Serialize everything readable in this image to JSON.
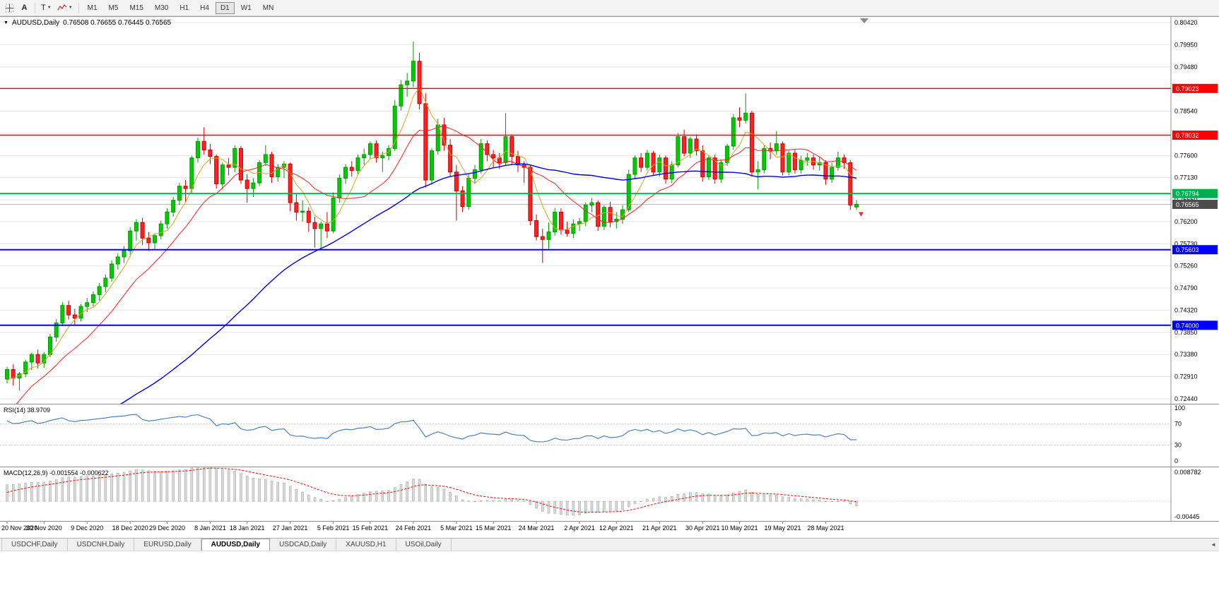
{
  "toolbar": {
    "tool_a_label": "A",
    "tool_t_label": "T",
    "timeframes": [
      "M1",
      "M5",
      "M15",
      "M30",
      "H1",
      "H4",
      "D1",
      "W1",
      "MN"
    ],
    "active_timeframe": "D1"
  },
  "chart_data": {
    "type": "candlestick",
    "symbol_title": "AUDUSD,Daily",
    "ohlc_text": "0.76508 0.76655 0.76445 0.76565",
    "price_axis": {
      "top": 0.8042,
      "bottom": 0.7244,
      "labels": [
        "0.80420",
        "0.79950",
        "0.79480",
        "0.79010",
        "0.78540",
        "0.78070",
        "0.77600",
        "0.77130",
        "0.76660",
        "0.76200",
        "0.75730",
        "0.75260",
        "0.74790",
        "0.74320",
        "0.73850",
        "0.73380",
        "0.72910",
        "0.72440"
      ]
    },
    "style": {
      "bull_fill": "#00CC00",
      "bull_border": "#009900",
      "bear_fill": "#FF2222",
      "bear_border": "#CC0000"
    },
    "moving_averages": [
      {
        "period": 5,
        "color": "#DFA520",
        "width": 1
      },
      {
        "period": 13,
        "color": "#FF2020",
        "width": 1
      },
      {
        "period": 55,
        "color": "#0000D8",
        "width": 1.4
      }
    ],
    "hlines": [
      {
        "price": 0.79023,
        "label": "0.79023",
        "color": "#FF0000",
        "width": 1.4
      },
      {
        "price": 0.78032,
        "label": "0.78032",
        "color": "#FF0000",
        "width": 1.4
      },
      {
        "price": 0.76794,
        "label": "0.76794",
        "color": "#00B050",
        "width": 2
      },
      {
        "price": 0.75603,
        "label": "0.75603",
        "color": "#0000FF",
        "width": 2
      },
      {
        "price": 0.74,
        "label": "0.74000",
        "color": "#0000FF",
        "width": 2
      }
    ],
    "current_price": {
      "value": 0.76565,
      "label": "0.76565",
      "line_color": "#BDBDBD",
      "badge_color": "#4D4D4D"
    },
    "date_labels": [
      {
        "i": 0,
        "label": "20 Nov 2020"
      },
      {
        "i": 6,
        "label": "30 Nov 2020"
      },
      {
        "i": 13,
        "label": "9 Dec 2020"
      },
      {
        "i": 20,
        "label": "18 Dec 2020"
      },
      {
        "i": 26,
        "label": "29 Dec 2020"
      },
      {
        "i": 33,
        "label": "8 Jan 2021"
      },
      {
        "i": 39,
        "label": "18 Jan 2021"
      },
      {
        "i": 46,
        "label": "27 Jan 2021"
      },
      {
        "i": 53,
        "label": "5 Feb 2021"
      },
      {
        "i": 59,
        "label": "15 Feb 2021"
      },
      {
        "i": 66,
        "label": "24 Feb 2021"
      },
      {
        "i": 73,
        "label": "5 Mar 2021"
      },
      {
        "i": 79,
        "label": "15 Mar 2021"
      },
      {
        "i": 86,
        "label": "24 Mar 2021"
      },
      {
        "i": 93,
        "label": "2 Apr 2021"
      },
      {
        "i": 99,
        "label": "12 Apr 2021"
      },
      {
        "i": 106,
        "label": "21 Apr 2021"
      },
      {
        "i": 113,
        "label": "30 Apr 2021"
      },
      {
        "i": 119,
        "label": "10 May 2021"
      },
      {
        "i": 126,
        "label": "19 May 2021"
      },
      {
        "i": 133,
        "label": "28 May 2021"
      }
    ],
    "candles": [
      [
        0.7286,
        0.7312,
        0.7277,
        0.7306
      ],
      [
        0.7306,
        0.7317,
        0.7272,
        0.7288
      ],
      [
        0.7288,
        0.7301,
        0.7262,
        0.7297
      ],
      [
        0.7297,
        0.7327,
        0.729,
        0.7322
      ],
      [
        0.7322,
        0.7342,
        0.7305,
        0.7338
      ],
      [
        0.7338,
        0.7348,
        0.7308,
        0.732
      ],
      [
        0.732,
        0.7343,
        0.731,
        0.7338
      ],
      [
        0.7338,
        0.7382,
        0.7332,
        0.7375
      ],
      [
        0.7375,
        0.7413,
        0.7365,
        0.7405
      ],
      [
        0.7405,
        0.7449,
        0.7398,
        0.7442
      ],
      [
        0.7442,
        0.7452,
        0.7412,
        0.7422
      ],
      [
        0.7422,
        0.7435,
        0.74,
        0.7415
      ],
      [
        0.7415,
        0.7445,
        0.7408,
        0.744
      ],
      [
        0.744,
        0.7458,
        0.7428,
        0.7448
      ],
      [
        0.7448,
        0.7472,
        0.744,
        0.7465
      ],
      [
        0.7465,
        0.749,
        0.7452,
        0.7482
      ],
      [
        0.7482,
        0.7508,
        0.747,
        0.75
      ],
      [
        0.75,
        0.7538,
        0.7492,
        0.753
      ],
      [
        0.753,
        0.7552,
        0.7518,
        0.7545
      ],
      [
        0.7545,
        0.7568,
        0.7532,
        0.7558
      ],
      [
        0.7558,
        0.7608,
        0.755,
        0.76
      ],
      [
        0.76,
        0.7625,
        0.758,
        0.7618
      ],
      [
        0.7618,
        0.7628,
        0.757,
        0.7585
      ],
      [
        0.7585,
        0.7598,
        0.7558,
        0.7575
      ],
      [
        0.7575,
        0.7595,
        0.7562,
        0.759
      ],
      [
        0.759,
        0.7622,
        0.7582,
        0.7615
      ],
      [
        0.7615,
        0.7648,
        0.7605,
        0.764
      ],
      [
        0.764,
        0.7672,
        0.763,
        0.7665
      ],
      [
        0.7665,
        0.7702,
        0.7655,
        0.7695
      ],
      [
        0.7695,
        0.7708,
        0.766,
        0.769
      ],
      [
        0.769,
        0.776,
        0.768,
        0.7755
      ],
      [
        0.7755,
        0.7798,
        0.7745,
        0.779
      ],
      [
        0.779,
        0.782,
        0.7762,
        0.7772
      ],
      [
        0.7772,
        0.7785,
        0.7742,
        0.7758
      ],
      [
        0.7758,
        0.7762,
        0.769,
        0.77
      ],
      [
        0.77,
        0.7745,
        0.7688,
        0.774
      ],
      [
        0.774,
        0.7755,
        0.7718,
        0.7735
      ],
      [
        0.7735,
        0.7782,
        0.7725,
        0.7775
      ],
      [
        0.7775,
        0.778,
        0.77,
        0.7708
      ],
      [
        0.7708,
        0.772,
        0.766,
        0.769
      ],
      [
        0.769,
        0.7712,
        0.7672,
        0.7702
      ],
      [
        0.7702,
        0.775,
        0.7695,
        0.7745
      ],
      [
        0.7745,
        0.7782,
        0.7738,
        0.7762
      ],
      [
        0.7762,
        0.7768,
        0.7702,
        0.7715
      ],
      [
        0.7715,
        0.7742,
        0.7705,
        0.7735
      ],
      [
        0.7735,
        0.7748,
        0.7712,
        0.7742
      ],
      [
        0.7742,
        0.7745,
        0.7642,
        0.766
      ],
      [
        0.766,
        0.7678,
        0.7622,
        0.764
      ],
      [
        0.764,
        0.7665,
        0.762,
        0.7642
      ],
      [
        0.7642,
        0.765,
        0.7598,
        0.7618
      ],
      [
        0.7618,
        0.763,
        0.7565,
        0.7605
      ],
      [
        0.7605,
        0.762,
        0.7562,
        0.7615
      ],
      [
        0.7615,
        0.764,
        0.7585,
        0.76
      ],
      [
        0.76,
        0.7682,
        0.7595,
        0.767
      ],
      [
        0.767,
        0.772,
        0.766,
        0.7712
      ],
      [
        0.7712,
        0.7742,
        0.77,
        0.7735
      ],
      [
        0.7735,
        0.7748,
        0.7715,
        0.7728
      ],
      [
        0.7728,
        0.7762,
        0.772,
        0.7755
      ],
      [
        0.7755,
        0.7775,
        0.774,
        0.7762
      ],
      [
        0.7762,
        0.779,
        0.7752,
        0.7785
      ],
      [
        0.7785,
        0.7792,
        0.7745,
        0.7755
      ],
      [
        0.7755,
        0.7768,
        0.7725,
        0.776
      ],
      [
        0.776,
        0.7782,
        0.775,
        0.7775
      ],
      [
        0.7775,
        0.7878,
        0.777,
        0.7865
      ],
      [
        0.7865,
        0.792,
        0.7855,
        0.791
      ],
      [
        0.791,
        0.7935,
        0.7885,
        0.7918
      ],
      [
        0.7918,
        0.8002,
        0.7905,
        0.796
      ],
      [
        0.796,
        0.7978,
        0.7858,
        0.787
      ],
      [
        0.787,
        0.7892,
        0.7692,
        0.7708
      ],
      [
        0.7708,
        0.7775,
        0.7698,
        0.777
      ],
      [
        0.777,
        0.7838,
        0.7762,
        0.7825
      ],
      [
        0.7825,
        0.784,
        0.777,
        0.7782
      ],
      [
        0.7782,
        0.7795,
        0.7715,
        0.7725
      ],
      [
        0.7725,
        0.774,
        0.7622,
        0.7685
      ],
      [
        0.7685,
        0.7695,
        0.764,
        0.7652
      ],
      [
        0.7652,
        0.772,
        0.7645,
        0.7712
      ],
      [
        0.7712,
        0.774,
        0.77,
        0.773
      ],
      [
        0.773,
        0.7795,
        0.7722,
        0.7785
      ],
      [
        0.7785,
        0.7792,
        0.7748,
        0.7762
      ],
      [
        0.7762,
        0.7772,
        0.7735,
        0.7755
      ],
      [
        0.7755,
        0.7765,
        0.7732,
        0.7745
      ],
      [
        0.7745,
        0.785,
        0.7738,
        0.78
      ],
      [
        0.78,
        0.7805,
        0.7742,
        0.7758
      ],
      [
        0.7758,
        0.777,
        0.7725,
        0.774
      ],
      [
        0.774,
        0.7748,
        0.7702,
        0.7735
      ],
      [
        0.7735,
        0.774,
        0.7612,
        0.7622
      ],
      [
        0.7622,
        0.7635,
        0.758,
        0.7588
      ],
      [
        0.7588,
        0.7605,
        0.7532,
        0.7582
      ],
      [
        0.7582,
        0.7618,
        0.7562,
        0.7598
      ],
      [
        0.7598,
        0.7648,
        0.759,
        0.764
      ],
      [
        0.764,
        0.7648,
        0.7592,
        0.7602
      ],
      [
        0.7602,
        0.762,
        0.7588,
        0.7595
      ],
      [
        0.7595,
        0.7625,
        0.7585,
        0.7615
      ],
      [
        0.7615,
        0.7628,
        0.76,
        0.762
      ],
      [
        0.762,
        0.766,
        0.761,
        0.7655
      ],
      [
        0.7655,
        0.767,
        0.764,
        0.766
      ],
      [
        0.766,
        0.7665,
        0.76,
        0.761
      ],
      [
        0.761,
        0.7655,
        0.7602,
        0.765
      ],
      [
        0.765,
        0.7662,
        0.7608,
        0.762
      ],
      [
        0.762,
        0.764,
        0.7605,
        0.7625
      ],
      [
        0.7625,
        0.7655,
        0.7615,
        0.7645
      ],
      [
        0.7645,
        0.773,
        0.764,
        0.772
      ],
      [
        0.772,
        0.776,
        0.7712,
        0.7755
      ],
      [
        0.7755,
        0.7765,
        0.7725,
        0.7735
      ],
      [
        0.7735,
        0.7772,
        0.7728,
        0.7765
      ],
      [
        0.7765,
        0.777,
        0.7718,
        0.7725
      ],
      [
        0.7725,
        0.7762,
        0.7715,
        0.7755
      ],
      [
        0.7755,
        0.776,
        0.77,
        0.771
      ],
      [
        0.771,
        0.7748,
        0.7702,
        0.774
      ],
      [
        0.774,
        0.7808,
        0.7735,
        0.78
      ],
      [
        0.78,
        0.7815,
        0.7758,
        0.7765
      ],
      [
        0.7765,
        0.78,
        0.7755,
        0.7795
      ],
      [
        0.7795,
        0.7805,
        0.776,
        0.777
      ],
      [
        0.777,
        0.7782,
        0.7705,
        0.7715
      ],
      [
        0.7715,
        0.776,
        0.7708,
        0.7755
      ],
      [
        0.7755,
        0.7762,
        0.77,
        0.771
      ],
      [
        0.771,
        0.7752,
        0.7702,
        0.7745
      ],
      [
        0.7745,
        0.7785,
        0.7738,
        0.778
      ],
      [
        0.778,
        0.7848,
        0.7772,
        0.784
      ],
      [
        0.784,
        0.7862,
        0.782,
        0.7835
      ],
      [
        0.7835,
        0.7892,
        0.7828,
        0.785
      ],
      [
        0.785,
        0.7855,
        0.7715,
        0.7725
      ],
      [
        0.7725,
        0.7748,
        0.7688,
        0.773
      ],
      [
        0.773,
        0.7782,
        0.7722,
        0.7775
      ],
      [
        0.7775,
        0.7788,
        0.7752,
        0.777
      ],
      [
        0.777,
        0.7812,
        0.7762,
        0.7785
      ],
      [
        0.7785,
        0.779,
        0.7718,
        0.7725
      ],
      [
        0.7725,
        0.777,
        0.7718,
        0.7765
      ],
      [
        0.7765,
        0.7772,
        0.7722,
        0.773
      ],
      [
        0.773,
        0.776,
        0.7722,
        0.775
      ],
      [
        0.775,
        0.7765,
        0.7738,
        0.7755
      ],
      [
        0.7755,
        0.7762,
        0.773,
        0.774
      ],
      [
        0.774,
        0.7758,
        0.7728,
        0.7745
      ],
      [
        0.7745,
        0.775,
        0.7698,
        0.771
      ],
      [
        0.771,
        0.7745,
        0.7702,
        0.7735
      ],
      [
        0.7735,
        0.7768,
        0.7728,
        0.7755
      ],
      [
        0.7755,
        0.7762,
        0.7732,
        0.7745
      ],
      [
        0.7745,
        0.775,
        0.7645,
        0.7655
      ],
      [
        0.76508,
        0.76655,
        0.76445,
        0.76565
      ]
    ],
    "ma_history_closes": [
      0.734,
      0.732,
      0.73,
      0.728,
      0.7255,
      0.723,
      0.7205,
      0.718,
      0.715,
      0.712,
      0.709,
      0.706,
      0.703,
      0.701,
      0.7025,
      0.7045,
      0.7065,
      0.7085,
      0.7105,
      0.7125,
      0.714,
      0.7155,
      0.7165,
      0.715,
      0.7135,
      0.712,
      0.7105,
      0.7115,
      0.713,
      0.7145,
      0.716,
      0.715,
      0.7138,
      0.7125,
      0.711,
      0.7095,
      0.708,
      0.7065,
      0.705,
      0.7035,
      0.702,
      0.7005,
      0.703,
      0.706,
      0.709,
      0.712,
      0.715,
      0.718,
      0.7205,
      0.7225,
      0.7245,
      0.7262,
      0.7275,
      0.7285,
      0.729
    ]
  },
  "rsi": {
    "label_text": "RSI(14) 38.9709",
    "period": 14,
    "color": "#3E77BE",
    "levels": [
      70,
      30
    ],
    "axis_labels": [
      "100",
      "70",
      "30",
      "0"
    ]
  },
  "macd": {
    "label_text": "MACD(12,26,9) -0.001554 -0.000622",
    "fast": 12,
    "slow": 26,
    "signal_period": 9,
    "axis_max": 0.008782,
    "axis_min": -0.00445,
    "axis_max_label": "0.008782",
    "axis_min_label": "-0.00445",
    "hist_color": "#D9D9D9",
    "hist_border": "#9E9E9E",
    "signal_color": "#FF0000"
  },
  "tabs": {
    "items": [
      {
        "label": "USDCHF,Daily",
        "active": false
      },
      {
        "label": "USDCNH,Daily",
        "active": false
      },
      {
        "label": "EURUSD,Daily",
        "active": false
      },
      {
        "label": "AUDUSD,Daily",
        "active": true
      },
      {
        "label": "USDCAD,Daily",
        "active": false
      },
      {
        "label": "XAUUSD,H1",
        "active": false
      },
      {
        "label": "USOil,Daily",
        "active": false
      }
    ]
  }
}
